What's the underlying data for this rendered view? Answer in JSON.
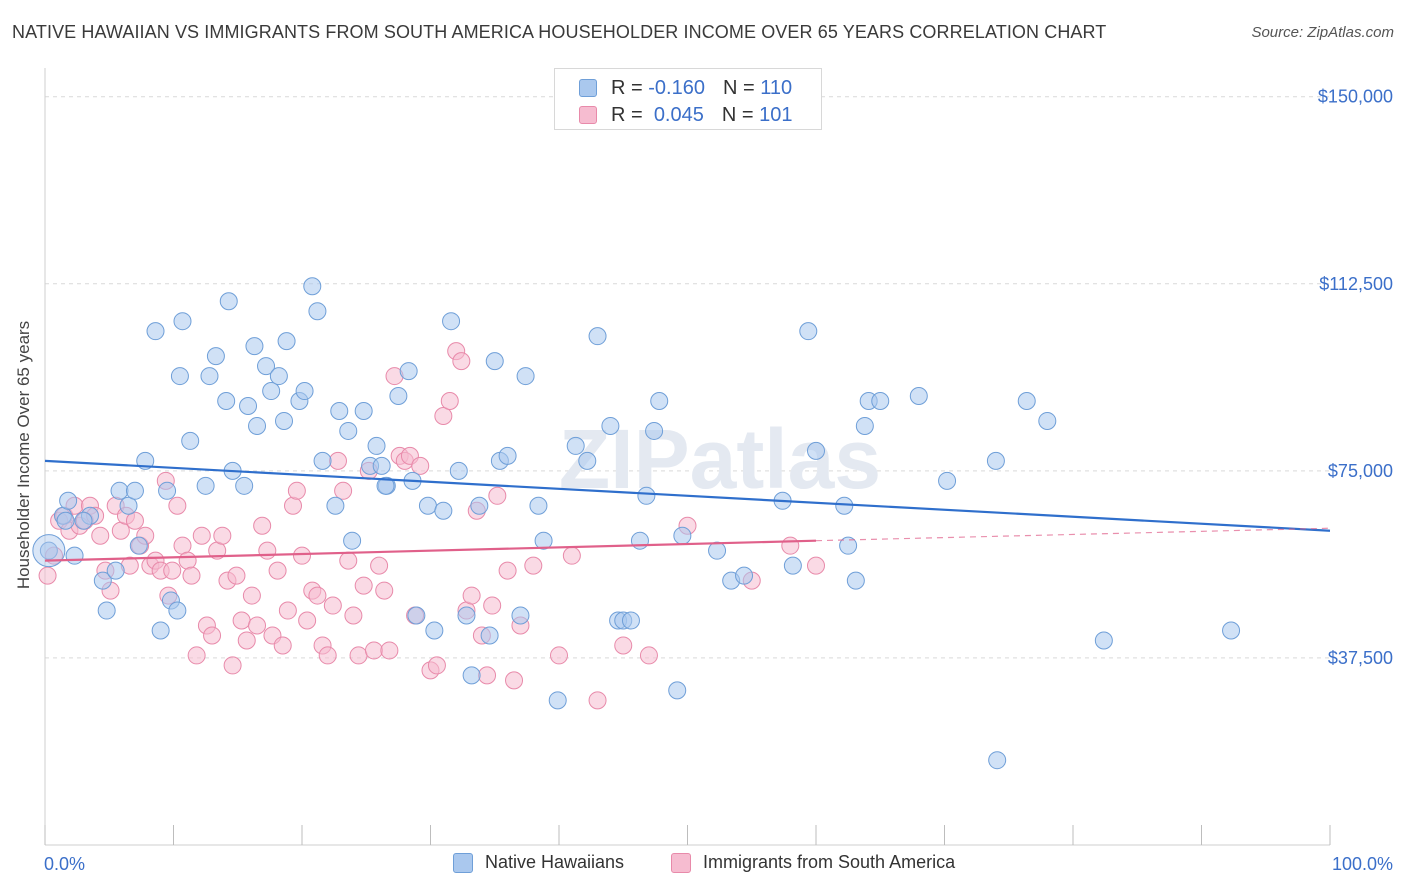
{
  "title": "NATIVE HAWAIIAN VS IMMIGRANTS FROM SOUTH AMERICA HOUSEHOLDER INCOME OVER 65 YEARS CORRELATION CHART",
  "source": "Source: ZipAtlas.com",
  "watermark": "ZIPatlas",
  "colors": {
    "blue_fill": "#aac8ee",
    "blue_stroke": "#6f9fd8",
    "blue_line": "#2f6fcc",
    "pink_fill": "#f6bcd0",
    "pink_stroke": "#e88aaa",
    "pink_line": "#e0608a",
    "axis_label": "#3b6fc9",
    "grid": "#d9d9d9"
  },
  "legend": {
    "rows": [
      {
        "r_label": "R =",
        "r_value": "-0.160",
        "n_label": "N =",
        "n_value": "110",
        "series": "blue"
      },
      {
        "r_label": "R =",
        "r_value": "0.045",
        "n_label": "N =",
        "n_value": "101",
        "series": "pink"
      }
    ]
  },
  "bottom_legend": {
    "series1": "Native Hawaiians",
    "series2": "Immigrants from South America"
  },
  "chart_data": {
    "type": "scatter",
    "title": "NATIVE HAWAIIAN VS IMMIGRANTS FROM SOUTH AMERICA HOUSEHOLDER INCOME OVER 65 YEARS CORRELATION CHART",
    "xlabel": "",
    "ylabel": "Householder Income Over 65 years",
    "xlim": [
      0,
      100
    ],
    "ylim": [
      0,
      153750
    ],
    "x_tick_labels": [
      "0.0%",
      "100.0%"
    ],
    "y_ticks": [
      37500,
      75000,
      112500,
      150000
    ],
    "y_tick_labels": [
      "$37,500",
      "$75,000",
      "$112,500",
      "$150,000"
    ],
    "grid": true,
    "series": [
      {
        "name": "Native Hawaiians",
        "color": "blue",
        "trend": {
          "x": [
            0,
            100
          ],
          "y": [
            77000,
            63000
          ]
        },
        "points": [
          [
            0.3,
            59000
          ],
          [
            1.4,
            66000
          ],
          [
            1.6,
            65000
          ],
          [
            1.8,
            69000
          ],
          [
            2.3,
            58000
          ],
          [
            3.5,
            66000
          ],
          [
            4.5,
            53000
          ],
          [
            4.8,
            47000
          ],
          [
            5.5,
            55000
          ],
          [
            5.8,
            71000
          ],
          [
            6.5,
            68000
          ],
          [
            7.0,
            71000
          ],
          [
            7.3,
            60000
          ],
          [
            7.8,
            77000
          ],
          [
            8.6,
            103000
          ],
          [
            9.0,
            43000
          ],
          [
            9.5,
            71000
          ],
          [
            9.8,
            49000
          ],
          [
            10.3,
            47000
          ],
          [
            10.5,
            94000
          ],
          [
            10.7,
            105000
          ],
          [
            11.3,
            81000
          ],
          [
            12.5,
            72000
          ],
          [
            12.8,
            94000
          ],
          [
            13.3,
            98000
          ],
          [
            14.1,
            89000
          ],
          [
            14.3,
            109000
          ],
          [
            14.6,
            75000
          ],
          [
            15.5,
            72000
          ],
          [
            15.8,
            88000
          ],
          [
            16.3,
            100000
          ],
          [
            16.5,
            84000
          ],
          [
            17.2,
            96000
          ],
          [
            17.6,
            91000
          ],
          [
            18.2,
            94000
          ],
          [
            18.6,
            85000
          ],
          [
            18.8,
            101000
          ],
          [
            19.8,
            89000
          ],
          [
            20.2,
            91000
          ],
          [
            20.8,
            112000
          ],
          [
            21.2,
            107000
          ],
          [
            21.6,
            77000
          ],
          [
            22.6,
            68000
          ],
          [
            22.9,
            87000
          ],
          [
            23.6,
            83000
          ],
          [
            23.9,
            61000
          ],
          [
            24.8,
            87000
          ],
          [
            25.3,
            76000
          ],
          [
            25.8,
            80000
          ],
          [
            26.2,
            76000
          ],
          [
            26.6,
            72000
          ],
          [
            27.5,
            90000
          ],
          [
            28.3,
            95000
          ],
          [
            28.6,
            73000
          ],
          [
            28.9,
            46000
          ],
          [
            29.8,
            68000
          ],
          [
            30.3,
            43000
          ],
          [
            31.6,
            105000
          ],
          [
            32.2,
            75000
          ],
          [
            32.8,
            46000
          ],
          [
            33.2,
            34000
          ],
          [
            33.8,
            68000
          ],
          [
            34.6,
            42000
          ],
          [
            35.0,
            97000
          ],
          [
            35.4,
            77000
          ],
          [
            36.0,
            78000
          ],
          [
            37.0,
            46000
          ],
          [
            37.4,
            94000
          ],
          [
            38.4,
            68000
          ],
          [
            38.8,
            61000
          ],
          [
            39.9,
            29000
          ],
          [
            41.3,
            80000
          ],
          [
            42.2,
            77000
          ],
          [
            43.0,
            102000
          ],
          [
            44.0,
            84000
          ],
          [
            44.6,
            45000
          ],
          [
            45.0,
            45000
          ],
          [
            45.6,
            45000
          ],
          [
            46.3,
            61000
          ],
          [
            46.8,
            70000
          ],
          [
            47.4,
            83000
          ],
          [
            47.8,
            89000
          ],
          [
            49.2,
            31000
          ],
          [
            49.6,
            62000
          ],
          [
            52.3,
            59000
          ],
          [
            53.4,
            53000
          ],
          [
            54.4,
            54000
          ],
          [
            57.4,
            69000
          ],
          [
            58.2,
            56000
          ],
          [
            59.4,
            103000
          ],
          [
            60.0,
            79000
          ],
          [
            62.2,
            68000
          ],
          [
            63.1,
            53000
          ],
          [
            63.8,
            84000
          ],
          [
            64.1,
            89000
          ],
          [
            65.0,
            89000
          ],
          [
            68.0,
            90000
          ],
          [
            70.2,
            73000
          ],
          [
            74.1,
            17000
          ],
          [
            76.4,
            89000
          ],
          [
            78.0,
            85000
          ],
          [
            82.4,
            41000
          ],
          [
            92.3,
            43000
          ],
          [
            74.0,
            77000
          ],
          [
            62.5,
            60000
          ],
          [
            31.0,
            67000
          ],
          [
            26.5,
            72000
          ],
          [
            3.0,
            65000
          ]
        ]
      },
      {
        "name": "Immigrants from South America",
        "color": "pink",
        "trend": {
          "x": [
            0,
            60
          ],
          "y": [
            57000,
            61000
          ]
        },
        "trend_dashed": {
          "x": [
            60,
            100
          ],
          "y": [
            61000,
            63500
          ]
        },
        "points": [
          [
            0.2,
            54000
          ],
          [
            0.7,
            58000
          ],
          [
            1.1,
            65000
          ],
          [
            1.5,
            66000
          ],
          [
            1.9,
            63000
          ],
          [
            2.3,
            68000
          ],
          [
            2.7,
            64000
          ],
          [
            3.1,
            65000
          ],
          [
            3.5,
            68000
          ],
          [
            3.9,
            66000
          ],
          [
            4.3,
            62000
          ],
          [
            4.7,
            55000
          ],
          [
            5.1,
            51000
          ],
          [
            5.5,
            68000
          ],
          [
            5.9,
            63000
          ],
          [
            6.3,
            66000
          ],
          [
            6.6,
            56000
          ],
          [
            7.0,
            65000
          ],
          [
            7.4,
            60000
          ],
          [
            7.8,
            62000
          ],
          [
            8.2,
            56000
          ],
          [
            8.6,
            57000
          ],
          [
            9.0,
            55000
          ],
          [
            9.4,
            73000
          ],
          [
            9.6,
            50000
          ],
          [
            9.9,
            55000
          ],
          [
            10.3,
            68000
          ],
          [
            10.7,
            60000
          ],
          [
            11.1,
            57000
          ],
          [
            11.4,
            54000
          ],
          [
            11.8,
            38000
          ],
          [
            12.2,
            62000
          ],
          [
            12.6,
            44000
          ],
          [
            13.0,
            42000
          ],
          [
            13.4,
            59000
          ],
          [
            13.8,
            62000
          ],
          [
            14.2,
            53000
          ],
          [
            14.6,
            36000
          ],
          [
            14.9,
            54000
          ],
          [
            15.3,
            45000
          ],
          [
            15.7,
            41000
          ],
          [
            16.1,
            50000
          ],
          [
            16.5,
            44000
          ],
          [
            16.9,
            64000
          ],
          [
            17.3,
            59000
          ],
          [
            17.7,
            42000
          ],
          [
            18.1,
            55000
          ],
          [
            18.5,
            40000
          ],
          [
            18.9,
            47000
          ],
          [
            19.3,
            68000
          ],
          [
            19.6,
            71000
          ],
          [
            20.0,
            58000
          ],
          [
            20.4,
            45000
          ],
          [
            20.8,
            51000
          ],
          [
            21.2,
            50000
          ],
          [
            21.6,
            40000
          ],
          [
            22.0,
            38000
          ],
          [
            22.4,
            48000
          ],
          [
            22.8,
            77000
          ],
          [
            23.2,
            71000
          ],
          [
            23.6,
            57000
          ],
          [
            24.0,
            46000
          ],
          [
            24.4,
            38000
          ],
          [
            24.8,
            52000
          ],
          [
            25.2,
            75000
          ],
          [
            25.6,
            39000
          ],
          [
            26.0,
            56000
          ],
          [
            26.4,
            51000
          ],
          [
            26.8,
            39000
          ],
          [
            27.2,
            94000
          ],
          [
            27.6,
            78000
          ],
          [
            28.0,
            77000
          ],
          [
            28.4,
            78000
          ],
          [
            28.8,
            46000
          ],
          [
            29.2,
            76000
          ],
          [
            30.0,
            35000
          ],
          [
            30.5,
            36000
          ],
          [
            31.0,
            86000
          ],
          [
            31.5,
            89000
          ],
          [
            32.0,
            99000
          ],
          [
            32.4,
            97000
          ],
          [
            32.8,
            47000
          ],
          [
            33.2,
            50000
          ],
          [
            33.6,
            67000
          ],
          [
            34.0,
            42000
          ],
          [
            34.4,
            34000
          ],
          [
            34.8,
            48000
          ],
          [
            35.2,
            70000
          ],
          [
            36.0,
            55000
          ],
          [
            36.5,
            33000
          ],
          [
            37.0,
            44000
          ],
          [
            38.0,
            56000
          ],
          [
            40.0,
            38000
          ],
          [
            41.0,
            58000
          ],
          [
            43.0,
            29000
          ],
          [
            45.0,
            40000
          ],
          [
            47.0,
            38000
          ],
          [
            50.0,
            64000
          ],
          [
            55.0,
            53000
          ],
          [
            58.0,
            60000
          ],
          [
            60.0,
            56000
          ]
        ]
      }
    ]
  }
}
